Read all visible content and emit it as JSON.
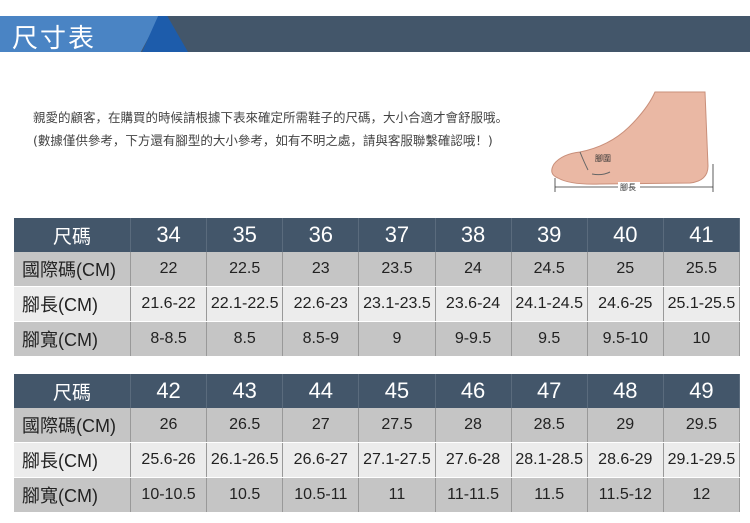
{
  "banner": {
    "title": "尺寸表"
  },
  "intro": {
    "text": "親愛的顧客，在購買的時候請根據下表來確定所需鞋子的尺碼，大小合適才會舒服哦。 (數據僅供參考，下方還有腳型的大小參考，如有不明之處，請與客服聯繫確認哦！)"
  },
  "foot_diagram": {
    "girth_label": "腳圍",
    "length_label": "腳長"
  },
  "tables": [
    {
      "header": "尺碼",
      "sizes": [
        "34",
        "35",
        "36",
        "37",
        "38",
        "39",
        "40",
        "41"
      ],
      "rows": [
        {
          "label": "國際碼(CM)",
          "values": [
            "22",
            "22.5",
            "23",
            "23.5",
            "24",
            "24.5",
            "25",
            "25.5"
          ]
        },
        {
          "label": "腳長(CM)",
          "values": [
            "21.6-22",
            "22.1-22.5",
            "22.6-23",
            "23.1-23.5",
            "23.6-24",
            "24.1-24.5",
            "24.6-25",
            "25.1-25.5"
          ]
        },
        {
          "label": "腳寬(CM)",
          "values": [
            "8-8.5",
            "8.5",
            "8.5-9",
            "9",
            "9-9.5",
            "9.5",
            "9.5-10",
            "10"
          ]
        }
      ]
    },
    {
      "header": "尺碼",
      "sizes": [
        "42",
        "43",
        "44",
        "45",
        "46",
        "47",
        "48",
        "49"
      ],
      "rows": [
        {
          "label": "國際碼(CM)",
          "values": [
            "26",
            "26.5",
            "27",
            "27.5",
            "28",
            "28.5",
            "29",
            "29.5"
          ]
        },
        {
          "label": "腳長(CM)",
          "values": [
            "25.6-26",
            "26.1-26.5",
            "26.6-27",
            "27.1-27.5",
            "27.6-28",
            "28.1-28.5",
            "28.6-29",
            "29.1-29.5"
          ]
        },
        {
          "label": "腳寬(CM)",
          "values": [
            "10-10.5",
            "10.5",
            "10.5-11",
            "11",
            "11-11.5",
            "11.5",
            "11.5-12",
            "12"
          ]
        }
      ]
    }
  ]
}
